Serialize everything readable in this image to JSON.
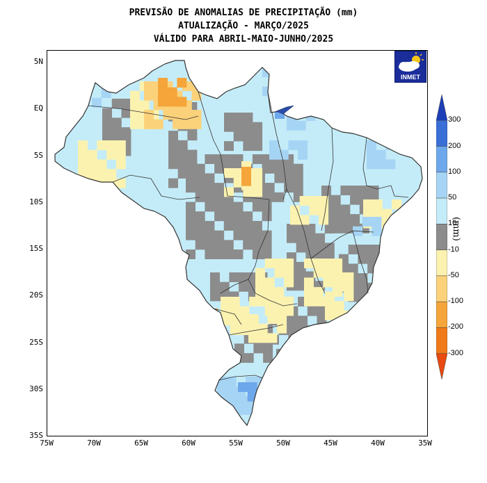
{
  "title": {
    "line1": "PREVISÃO DE ANOMALIAS DE PRECIPITAÇÃO (mm)",
    "line2": "ATUALIZAÇÃO - MARÇO/2025",
    "line3": "VÁLIDO PARA ABRIL-MAIO-JUNHO/2025"
  },
  "logo": {
    "label": "INMET"
  },
  "axes": {
    "lat_labels": [
      "5N",
      "EQ",
      "5S",
      "10S",
      "15S",
      "20S",
      "25S",
      "30S",
      "35S"
    ],
    "lon_labels": [
      "75W",
      "70W",
      "65W",
      "60W",
      "55W",
      "50W",
      "45W",
      "40W",
      "35W"
    ]
  },
  "colorbar": {
    "unit": "(mm)",
    "labels": [
      "300",
      "200",
      "100",
      "50",
      "10",
      "-10",
      "-50",
      "-100",
      "-200",
      "-300"
    ],
    "colors": [
      "#1c3fb8",
      "#3a6fd8",
      "#6ea8ec",
      "#a6d4f4",
      "#c4ecf8",
      "#8c8c8c",
      "#fbf2b0",
      "#fbd27a",
      "#f5a53a",
      "#f07a1a",
      "#e84a10"
    ]
  },
  "map_layers": {
    "region": "Brasil",
    "palette": {
      "gray": "#8c8c8c",
      "light_blue": "#c4ecf8",
      "blue": "#a6d4f4",
      "mid_blue": "#6ea8ec",
      "yellow": "#fbf2b0",
      "orange": "#fbd27a",
      "dark_orange": "#f5a53a"
    }
  }
}
